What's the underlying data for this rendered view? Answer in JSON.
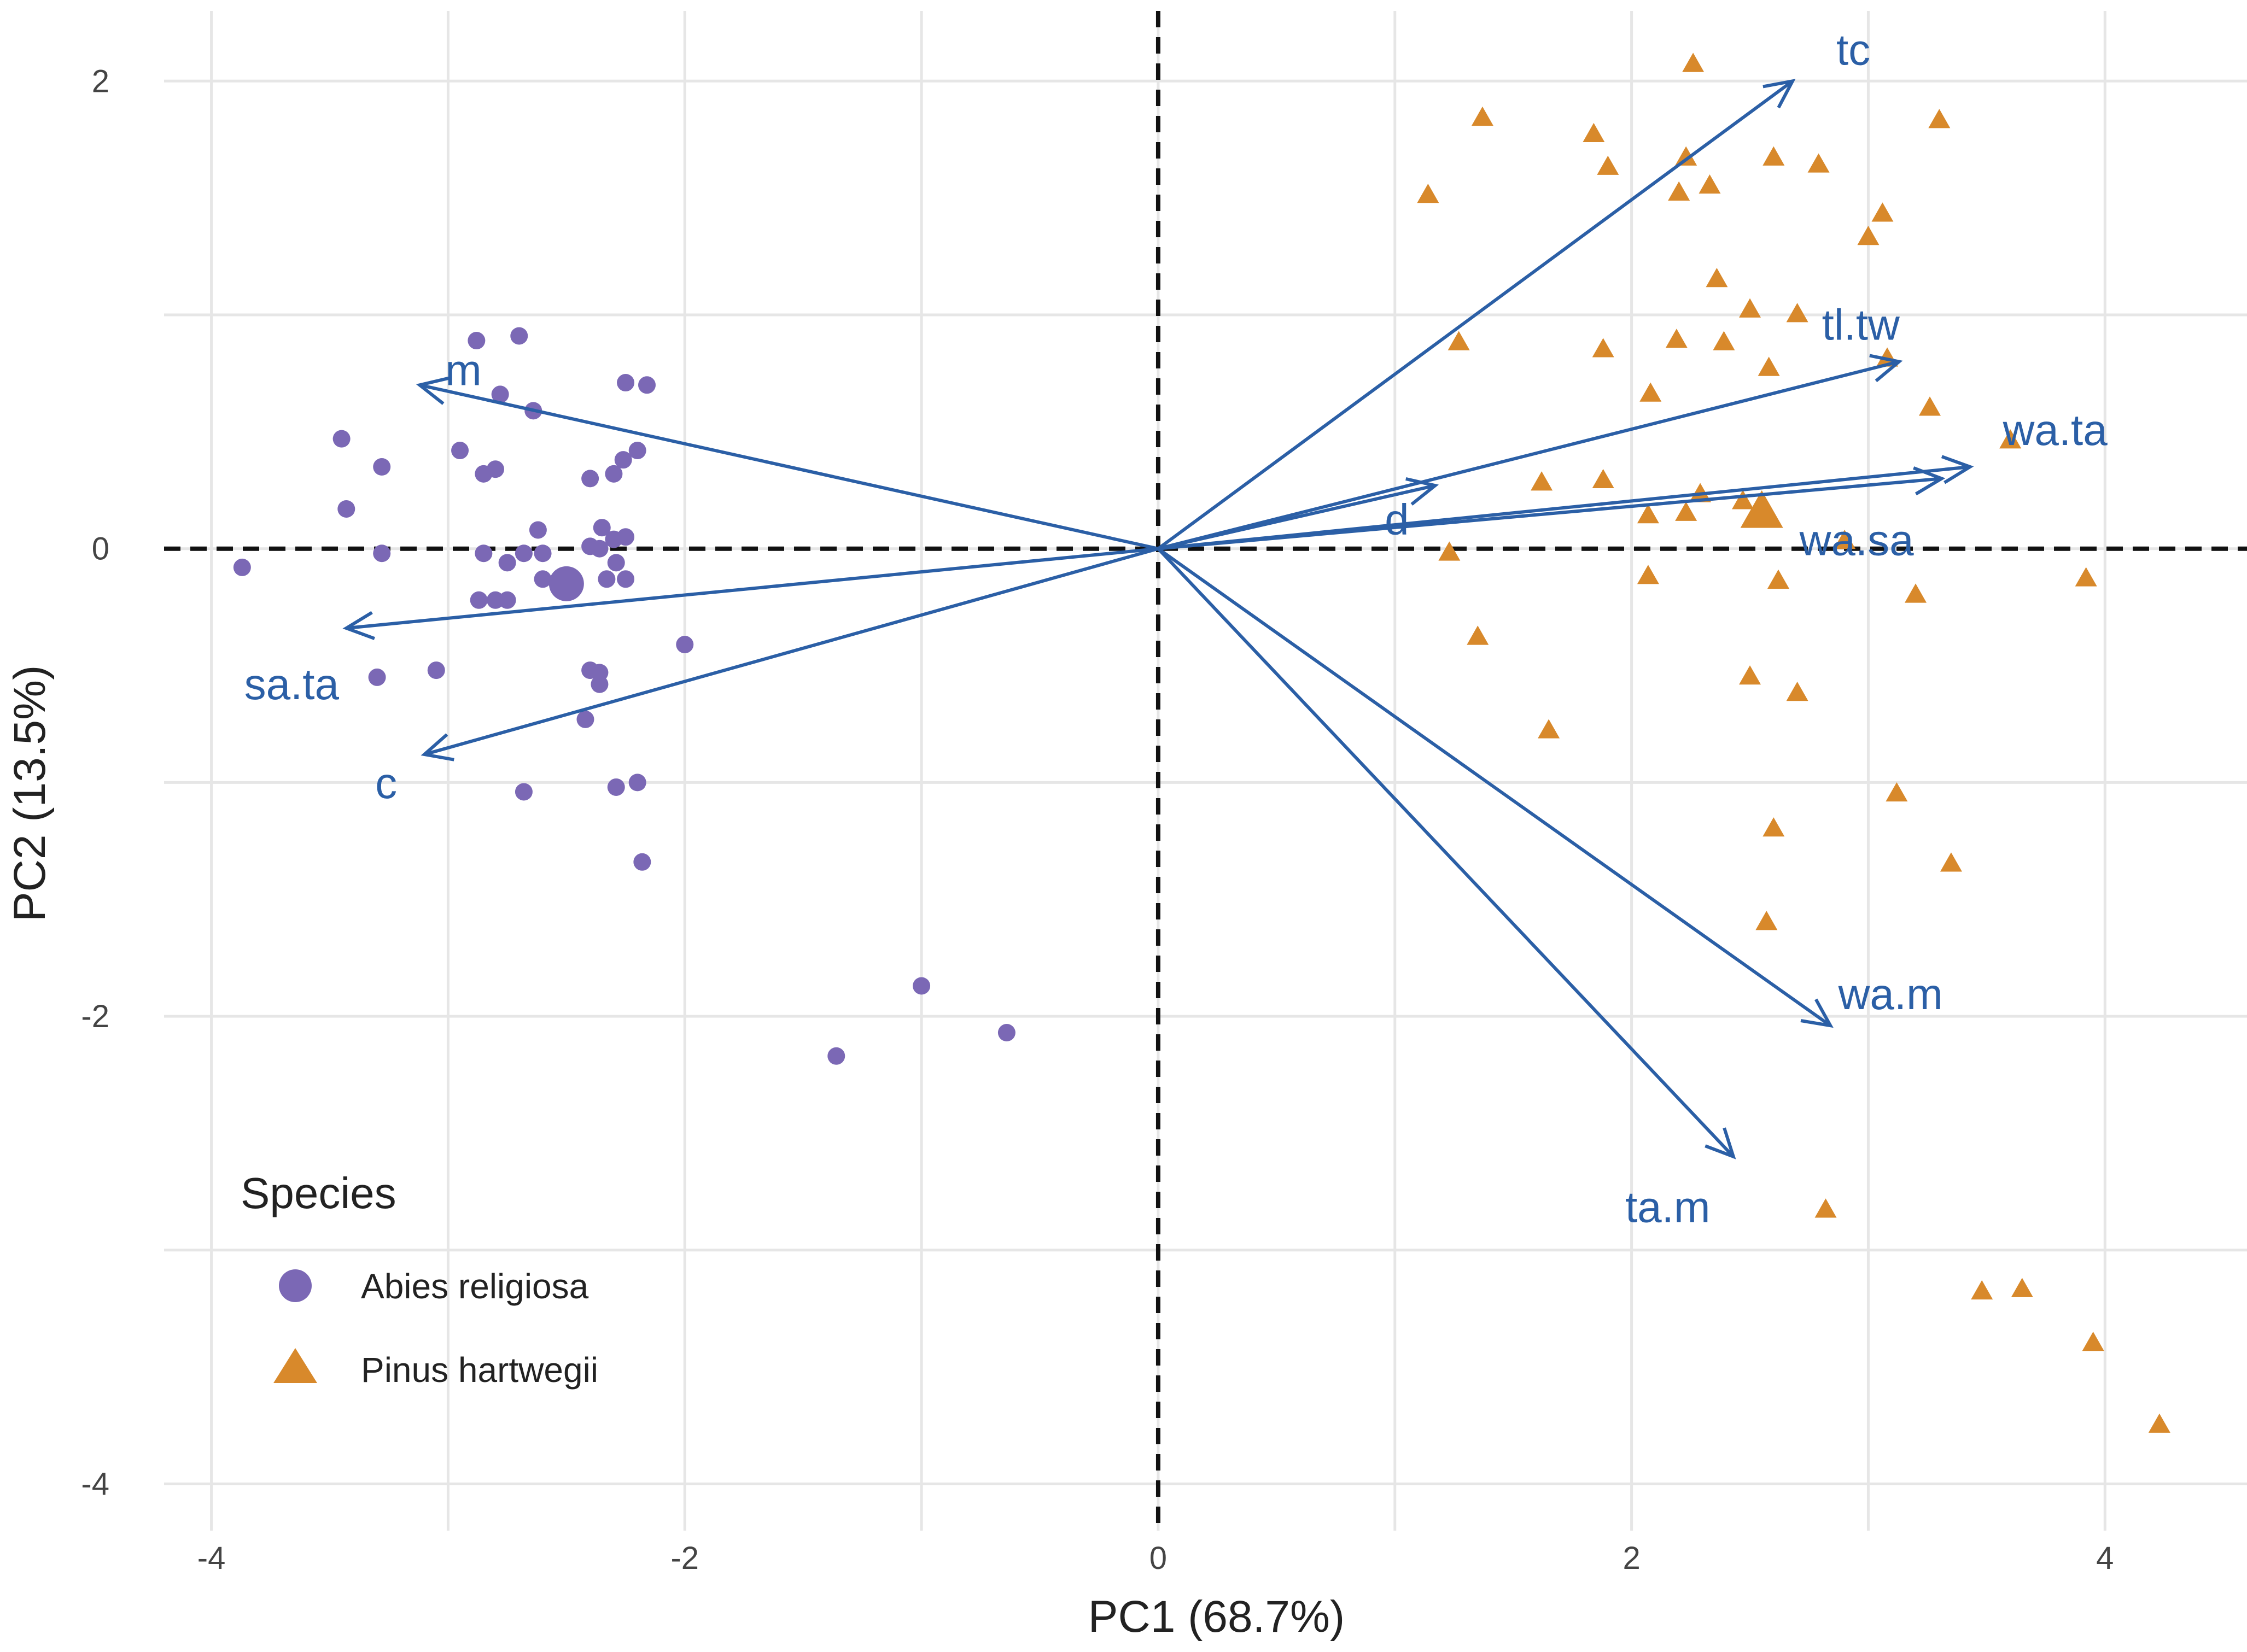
{
  "chart_data": {
    "type": "scatter",
    "subtype": "pca-biplot",
    "xlabel": "PC1 (68.7%)",
    "ylabel": "PC2 (13.5%)",
    "xlim": [
      -4.2,
      4.6
    ],
    "ylim": [
      -4.2,
      2.3
    ],
    "x_ticks": [
      -4,
      -2,
      0,
      2,
      4
    ],
    "y_ticks": [
      2,
      0,
      -2,
      -4
    ],
    "colors": {
      "abies": "#7b68b5",
      "pinus": "#d8892b",
      "arrow": "#2b5fa6",
      "grid": "#e6e6e6"
    },
    "legend": {
      "title": "Species",
      "position": "bottom-left",
      "entries": [
        {
          "label": "Abies religiosa",
          "shape": "circle",
          "color": "#7b68b5"
        },
        {
          "label": "Pinus hartwegii",
          "shape": "triangle",
          "color": "#d8892b"
        }
      ]
    },
    "series": [
      {
        "name": "Abies religiosa",
        "shape": "circle",
        "color": "#7b68b5",
        "centroid": [
          -2.5,
          -0.15
        ],
        "points": [
          [
            -3.87,
            -0.08
          ],
          [
            -3.45,
            0.47
          ],
          [
            -3.43,
            0.17
          ],
          [
            -3.28,
            0.35
          ],
          [
            -3.3,
            -0.55
          ],
          [
            -3.28,
            -0.02
          ],
          [
            -3.05,
            -0.52
          ],
          [
            -2.95,
            0.42
          ],
          [
            -2.88,
            0.89
          ],
          [
            -2.85,
            0.32
          ],
          [
            -2.8,
            0.34
          ],
          [
            -2.78,
            0.66
          ],
          [
            -2.7,
            0.91
          ],
          [
            -2.64,
            0.59
          ],
          [
            -2.85,
            -0.02
          ],
          [
            -2.8,
            -0.22
          ],
          [
            -2.87,
            -0.22
          ],
          [
            -2.75,
            -0.22
          ],
          [
            -2.75,
            -0.06
          ],
          [
            -2.68,
            -0.02
          ],
          [
            -2.62,
            0.08
          ],
          [
            -2.6,
            -0.02
          ],
          [
            -2.6,
            -0.13
          ],
          [
            -2.68,
            -1.04
          ],
          [
            -2.25,
            0.71
          ],
          [
            -2.16,
            0.7
          ],
          [
            -2.2,
            0.42
          ],
          [
            -2.26,
            0.38
          ],
          [
            -2.4,
            0.3
          ],
          [
            -2.3,
            0.32
          ],
          [
            -2.35,
            0.09
          ],
          [
            -2.3,
            0.04
          ],
          [
            -2.4,
            0.01
          ],
          [
            -2.36,
            0.0
          ],
          [
            -2.25,
            0.05
          ],
          [
            -2.29,
            -0.06
          ],
          [
            -2.33,
            -0.13
          ],
          [
            -2.25,
            -0.13
          ],
          [
            -2.4,
            -0.52
          ],
          [
            -2.36,
            -0.53
          ],
          [
            -2.36,
            -0.58
          ],
          [
            -2.42,
            -0.73
          ],
          [
            -2.29,
            -1.02
          ],
          [
            -2.2,
            -1.0
          ],
          [
            -2.18,
            -1.34
          ],
          [
            -2.0,
            -0.41
          ],
          [
            -1.36,
            -2.17
          ],
          [
            -1.0,
            -1.87
          ],
          [
            -0.64,
            -2.07
          ]
        ]
      },
      {
        "name": "Pinus hartwegii",
        "shape": "triangle",
        "color": "#d8892b",
        "centroid": [
          2.55,
          0.15
        ],
        "points": [
          [
            2.26,
            2.07
          ],
          [
            1.37,
            1.84
          ],
          [
            1.84,
            1.77
          ],
          [
            1.9,
            1.63
          ],
          [
            1.14,
            1.51
          ],
          [
            2.23,
            1.67
          ],
          [
            2.2,
            1.52
          ],
          [
            2.33,
            1.55
          ],
          [
            2.6,
            1.67
          ],
          [
            2.79,
            1.64
          ],
          [
            3.3,
            1.83
          ],
          [
            3.06,
            1.43
          ],
          [
            3.0,
            1.33
          ],
          [
            2.36,
            1.15
          ],
          [
            2.5,
            1.02
          ],
          [
            2.7,
            1.0
          ],
          [
            1.27,
            0.88
          ],
          [
            1.88,
            0.85
          ],
          [
            2.19,
            0.89
          ],
          [
            2.39,
            0.88
          ],
          [
            2.58,
            0.77
          ],
          [
            3.08,
            0.81
          ],
          [
            2.08,
            0.66
          ],
          [
            3.26,
            0.6
          ],
          [
            3.6,
            0.46
          ],
          [
            1.62,
            0.28
          ],
          [
            1.88,
            0.29
          ],
          [
            2.29,
            0.23
          ],
          [
            2.47,
            0.2
          ],
          [
            2.07,
            0.14
          ],
          [
            2.23,
            0.15
          ],
          [
            2.9,
            0.03
          ],
          [
            1.23,
            -0.02
          ],
          [
            2.07,
            -0.12
          ],
          [
            2.62,
            -0.14
          ],
          [
            3.2,
            -0.2
          ],
          [
            3.92,
            -0.13
          ],
          [
            1.35,
            -0.38
          ],
          [
            2.5,
            -0.55
          ],
          [
            2.7,
            -0.62
          ],
          [
            1.65,
            -0.78
          ],
          [
            3.12,
            -1.05
          ],
          [
            2.6,
            -1.2
          ],
          [
            3.35,
            -1.35
          ],
          [
            2.57,
            -1.6
          ],
          [
            2.82,
            -2.83
          ],
          [
            3.48,
            -3.18
          ],
          [
            3.65,
            -3.17
          ],
          [
            3.95,
            -3.4
          ],
          [
            4.23,
            -3.75
          ]
        ]
      }
    ],
    "loadings": [
      {
        "name": "tc",
        "x": 2.68,
        "y": 2.0
      },
      {
        "name": "tl.tw",
        "x": 3.13,
        "y": 0.8
      },
      {
        "name": "wa.ta",
        "x": 3.43,
        "y": 0.35
      },
      {
        "name": "wa.sa",
        "x": 3.31,
        "y": 0.3
      },
      {
        "name": "d",
        "x": 1.17,
        "y": 0.27
      },
      {
        "name": "wa.m",
        "x": 2.84,
        "y": -2.04
      },
      {
        "name": "ta.m",
        "x": 2.43,
        "y": -2.6
      },
      {
        "name": "m",
        "x": -3.12,
        "y": 0.7
      },
      {
        "name": "sa.ta",
        "x": -3.43,
        "y": -0.34
      },
      {
        "name": "c",
        "x": -3.1,
        "y": -0.88
      }
    ]
  }
}
